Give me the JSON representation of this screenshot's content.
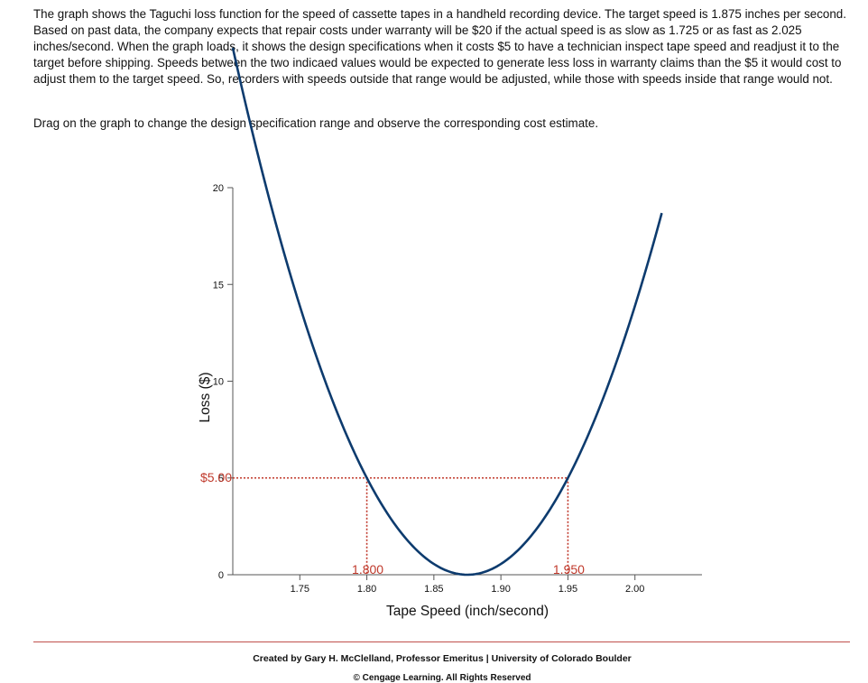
{
  "intro_text": "The graph shows the Taguchi loss function for the speed of cassette tapes in a handheld recording device. The target speed is 1.875 inches per second. Based on past data, the company expects that repair costs under warranty will be $20 if the actual speed is as slow as 1.725 or as fast as 2.025 inches/second. When the graph loads, it shows the design specifications when it costs $5 to have a technician inspect tape speed and readjust it to the target before shipping. Speeds between the two indicaed values would be expected to generate less loss in warranty claims than the $5 it would cost to adjust them to the target speed. So, recorders with speeds outside that range would be adjusted, while those with speeds inside that range would not.",
  "instruction_text": "Drag on the graph to change the design specification range and observe the corresponding cost estimate.",
  "footer": {
    "credit": "Created by Gary H. McClelland, Professor Emeritus | University of Colorado Boulder",
    "copyright": "© Cengage Learning. All Rights Reserved"
  },
  "colors": {
    "curve": "#0d3b6e",
    "spec": "#c0392b",
    "axis": "#555555",
    "rule": "#c0504d"
  },
  "chart_data": {
    "type": "line",
    "xlabel": "Tape Speed (inch/second)",
    "ylabel": "Loss ($)",
    "xlim": [
      1.7,
      2.05
    ],
    "ylim": [
      0,
      20
    ],
    "x_ticks": [
      "1.75",
      "1.80",
      "1.85",
      "1.90",
      "1.95",
      "2.00"
    ],
    "y_ticks": [
      "0",
      "5",
      "10",
      "15",
      "20"
    ],
    "target": 1.875,
    "loss_at_deviation": {
      "loss": 20,
      "deviation": 0.15
    },
    "curve_x_range": [
      1.7,
      2.02
    ],
    "cost_line": {
      "value": 5,
      "label": "$5.00"
    },
    "spec_limits": [
      {
        "x": 1.8,
        "label": "1.800"
      },
      {
        "x": 1.95,
        "label": "1.950"
      }
    ]
  }
}
